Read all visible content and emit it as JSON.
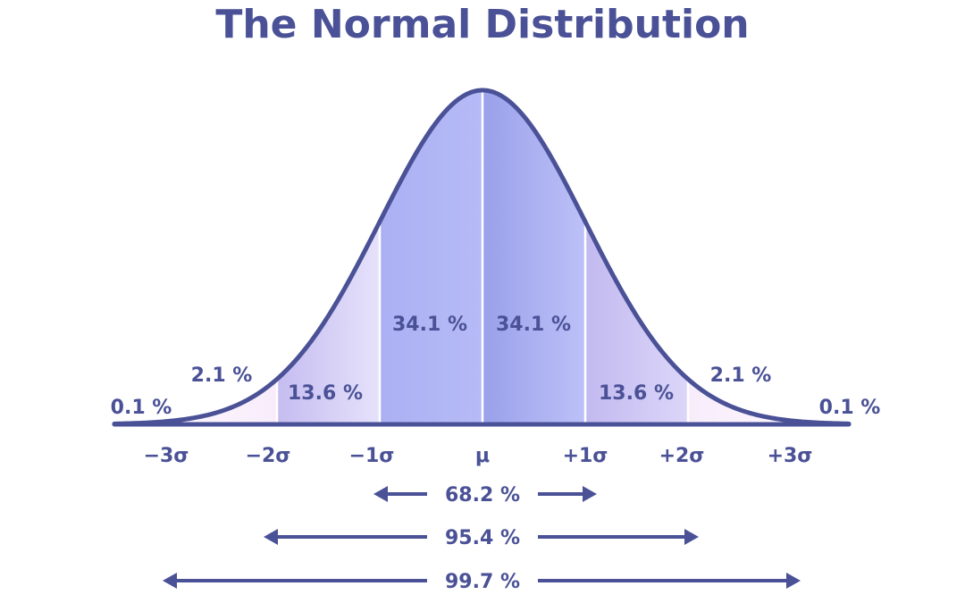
{
  "title": "The Normal Distribution",
  "colors": {
    "line": "#4a5196",
    "text": "#4a5196",
    "band_inner": "#aab0f3",
    "band_inner_dark": "#9aa0ea",
    "band_middle": "#dcd6f9",
    "band_middle_dark": "#c2b9ef",
    "band_outer": "#fbeefc"
  },
  "chart_data": {
    "type": "area",
    "mean": 0,
    "sd": 1,
    "xlim": [
      -3.5,
      3.5
    ],
    "ticks": [
      {
        "x": -3,
        "label": "−3σ"
      },
      {
        "x": -2,
        "label": "−2σ"
      },
      {
        "x": -1,
        "label": "−1σ"
      },
      {
        "x": 0,
        "label": "μ"
      },
      {
        "x": 1,
        "label": "+1σ"
      },
      {
        "x": 2,
        "label": "+2σ"
      },
      {
        "x": 3,
        "label": "+3σ"
      }
    ],
    "segments": [
      {
        "from": -3.5,
        "to": -3,
        "percent": 0.1,
        "label": "0.1 %"
      },
      {
        "from": -3,
        "to": -2,
        "percent": 2.1,
        "label": "2.1 %"
      },
      {
        "from": -2,
        "to": -1,
        "percent": 13.6,
        "label": "13.6 %"
      },
      {
        "from": -1,
        "to": 0,
        "percent": 34.1,
        "label": "34.1 %"
      },
      {
        "from": 0,
        "to": 1,
        "percent": 34.1,
        "label": "34.1 %"
      },
      {
        "from": 1,
        "to": 2,
        "percent": 13.6,
        "label": "13.6 %"
      },
      {
        "from": 2,
        "to": 3,
        "percent": 2.1,
        "label": "2.1 %"
      },
      {
        "from": 3,
        "to": 3.5,
        "percent": 0.1,
        "label": "0.1 %"
      }
    ],
    "ranges": [
      {
        "from": -1,
        "to": 1,
        "percent": 68.2,
        "label": "68.2 %"
      },
      {
        "from": -2,
        "to": 2,
        "percent": 95.4,
        "label": "95.4 %"
      },
      {
        "from": -3,
        "to": 3,
        "percent": 99.7,
        "label": "99.7 %"
      }
    ]
  }
}
